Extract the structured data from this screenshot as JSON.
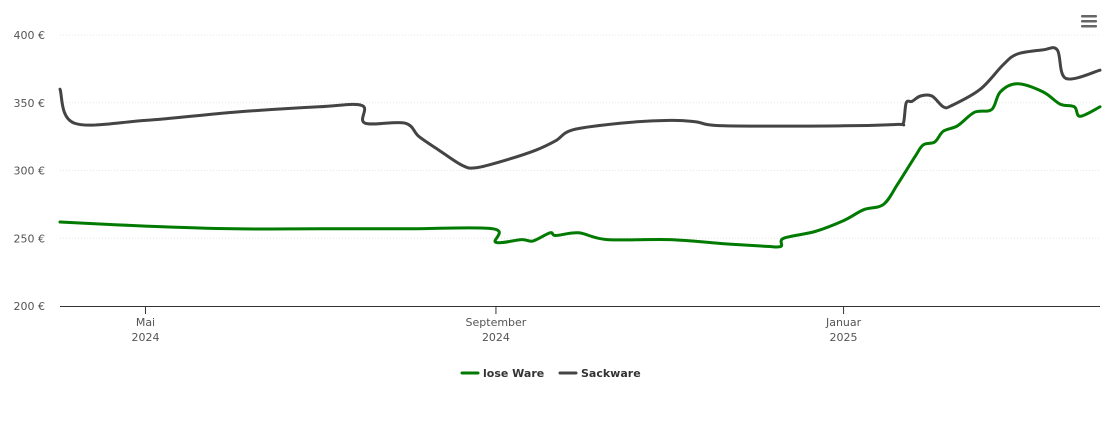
{
  "chart_data": {
    "type": "line",
    "y_ticks": [
      "200 €",
      "250 €",
      "300 €",
      "350 €",
      "400 €"
    ],
    "y_tick_values": [
      200,
      250,
      300,
      350,
      400
    ],
    "ylim": [
      200,
      400
    ],
    "x_range": [
      "2024-04-01",
      "2025-04-01"
    ],
    "x_ticks": [
      {
        "date": "2024-05-01",
        "label1": "Mai",
        "label2": "2024"
      },
      {
        "date": "2024-09-01",
        "label1": "September",
        "label2": "2024"
      },
      {
        "date": "2025-01-01",
        "label1": "Januar",
        "label2": "2025"
      }
    ],
    "grid": true,
    "legend_position": "bottom-center",
    "series": [
      {
        "name": "lose Ware",
        "color": "#007a00",
        "points": [
          [
            "2024-04-01",
            262
          ],
          [
            "2024-05-01",
            259
          ],
          [
            "2024-06-01",
            257
          ],
          [
            "2024-07-01",
            257
          ],
          [
            "2024-08-01",
            257
          ],
          [
            "2024-08-31",
            257
          ],
          [
            "2024-09-01",
            247
          ],
          [
            "2024-09-10",
            249
          ],
          [
            "2024-09-14",
            248
          ],
          [
            "2024-09-20",
            254
          ],
          [
            "2024-09-22",
            252
          ],
          [
            "2024-09-30",
            254
          ],
          [
            "2024-10-10",
            249
          ],
          [
            "2024-11-01",
            249
          ],
          [
            "2024-11-20",
            246
          ],
          [
            "2024-12-05",
            244
          ],
          [
            "2024-12-10",
            244
          ],
          [
            "2024-12-11",
            250
          ],
          [
            "2024-12-22",
            255
          ],
          [
            "2025-01-01",
            263
          ],
          [
            "2025-01-08",
            271
          ],
          [
            "2025-01-15",
            275
          ],
          [
            "2025-01-20",
            290
          ],
          [
            "2025-01-26",
            310
          ],
          [
            "2025-01-29",
            319
          ],
          [
            "2025-02-02",
            321
          ],
          [
            "2025-02-05",
            329
          ],
          [
            "2025-02-10",
            333
          ],
          [
            "2025-02-16",
            343
          ],
          [
            "2025-02-22",
            345
          ],
          [
            "2025-02-25",
            358
          ],
          [
            "2025-03-03",
            364
          ],
          [
            "2025-03-12",
            358
          ],
          [
            "2025-03-18",
            349
          ],
          [
            "2025-03-23",
            347
          ],
          [
            "2025-03-25",
            340
          ],
          [
            "2025-04-01",
            347
          ]
        ]
      },
      {
        "name": "Sackware",
        "color": "#444444",
        "points": [
          [
            "2024-04-01",
            360
          ],
          [
            "2024-04-06",
            335
          ],
          [
            "2024-05-01",
            337
          ],
          [
            "2024-06-01",
            343
          ],
          [
            "2024-07-01",
            347
          ],
          [
            "2024-07-16",
            348
          ],
          [
            "2024-07-17",
            335
          ],
          [
            "2024-07-31",
            335
          ],
          [
            "2024-08-05",
            325
          ],
          [
            "2024-08-12",
            315
          ],
          [
            "2024-08-20",
            304
          ],
          [
            "2024-08-25",
            302
          ],
          [
            "2024-09-05",
            308
          ],
          [
            "2024-09-15",
            315
          ],
          [
            "2024-09-22",
            322
          ],
          [
            "2024-09-28",
            330
          ],
          [
            "2024-10-15",
            335
          ],
          [
            "2024-11-01",
            337
          ],
          [
            "2024-11-10",
            336
          ],
          [
            "2024-11-20",
            333
          ],
          [
            "2025-01-01",
            333
          ],
          [
            "2025-01-20",
            334
          ],
          [
            "2025-01-22",
            335
          ],
          [
            "2025-01-23",
            350
          ],
          [
            "2025-01-25",
            351
          ],
          [
            "2025-01-28",
            355
          ],
          [
            "2025-02-01",
            355
          ],
          [
            "2025-02-05",
            347
          ],
          [
            "2025-02-08",
            348
          ],
          [
            "2025-02-18",
            360
          ],
          [
            "2025-02-26",
            378
          ],
          [
            "2025-03-03",
            386
          ],
          [
            "2025-03-12",
            389
          ],
          [
            "2025-03-17",
            389
          ],
          [
            "2025-03-20",
            368
          ],
          [
            "2025-04-01",
            374
          ]
        ]
      }
    ]
  }
}
